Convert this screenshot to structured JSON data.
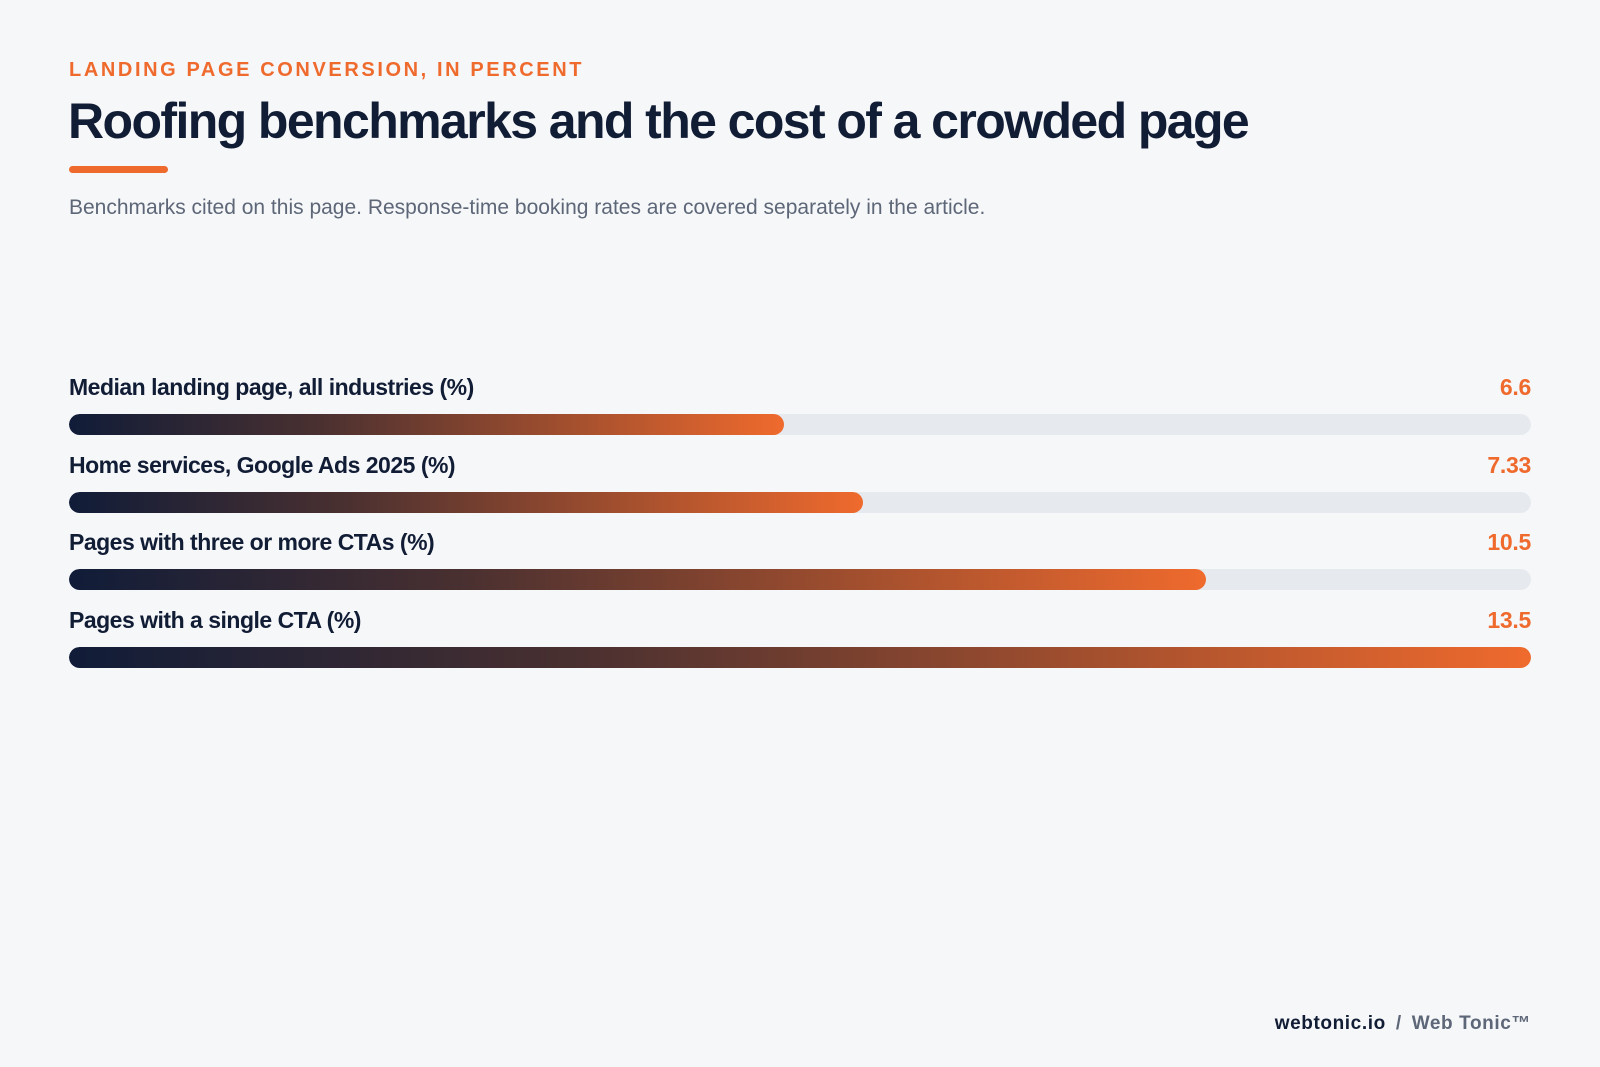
{
  "header": {
    "kicker": "LANDING PAGE CONVERSION, IN PERCENT",
    "title": "Roofing benchmarks and the cost of a crowded page",
    "subtitle": "Benchmarks cited on this page. Response-time booking rates are covered separately in the article."
  },
  "footer": {
    "domain": "webtonic.io",
    "separator": "/",
    "brand": "Web Tonic™"
  },
  "colors": {
    "accent": "#ef6a2d",
    "navy": "#111c35",
    "track": "#e6e9ee",
    "background": "#f6f7f9"
  },
  "chart_data": {
    "type": "bar",
    "orientation": "horizontal",
    "categories": [
      "Median landing page, all industries (%)",
      "Home services, Google Ads 2025 (%)",
      "Pages with three or more CTAs (%)",
      "Pages with a single CTA (%)"
    ],
    "values": [
      6.6,
      7.33,
      10.5,
      13.5
    ],
    "value_labels": [
      "6.6",
      "7.33",
      "10.5",
      "13.5"
    ],
    "xlim": [
      0,
      13.5
    ],
    "grid": false,
    "legend": "none"
  }
}
